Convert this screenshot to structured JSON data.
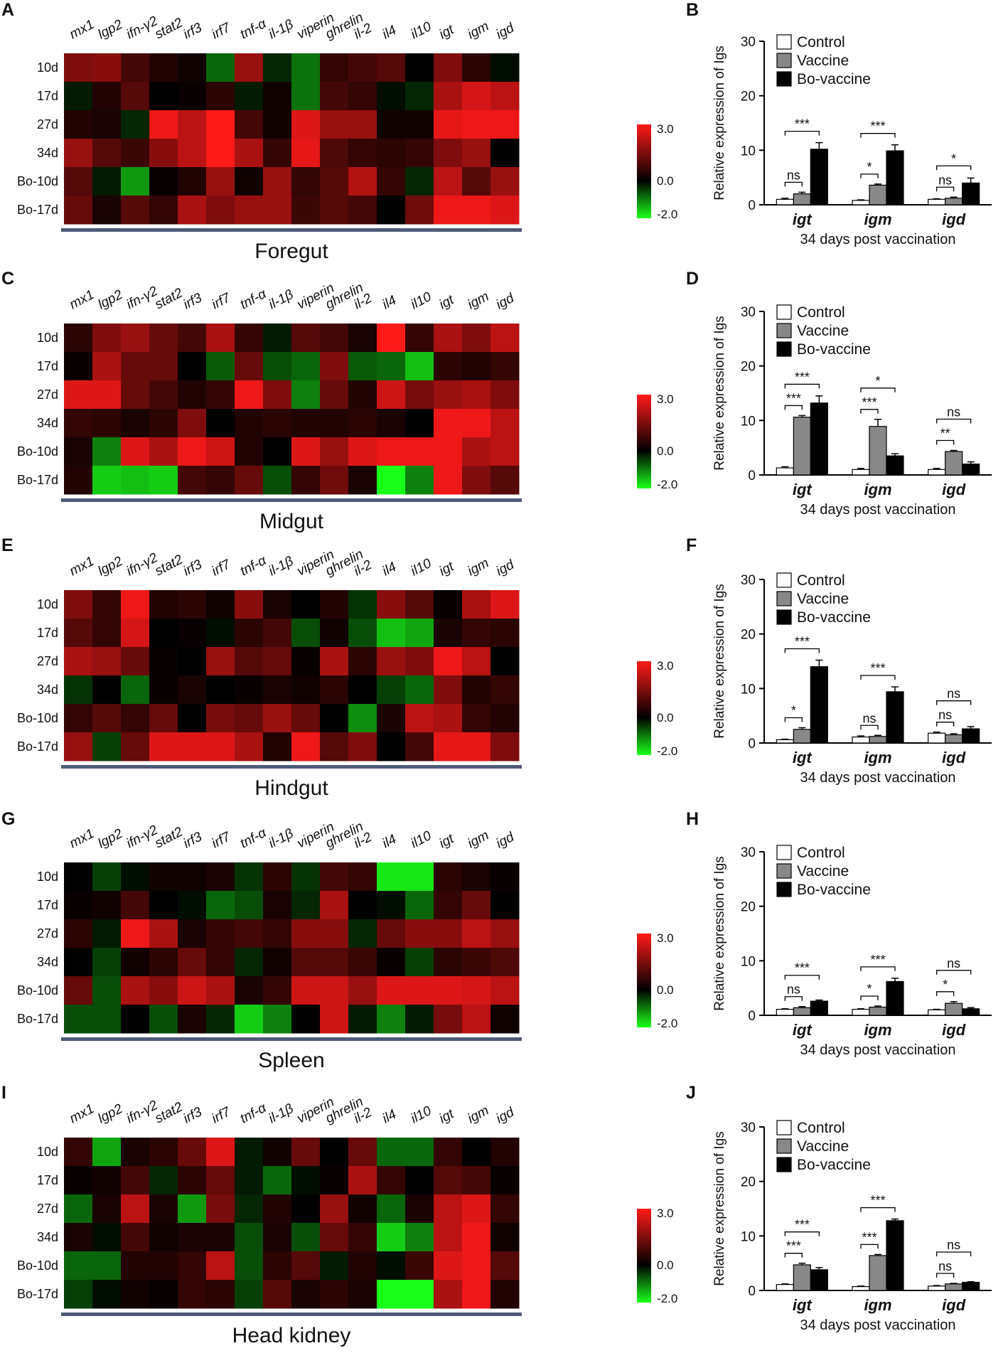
{
  "genes": [
    "mx1",
    "lgp2",
    "ifn-γ2",
    "stat2",
    "irf3",
    "irf7",
    "tnf-α",
    "il-1β",
    "viperin",
    "ghrelin",
    "il-2",
    "il4",
    "il10",
    "igt",
    "igm",
    "igd"
  ],
  "rows": [
    "10d",
    "17d",
    "27d",
    "34d",
    "Bo-10d",
    "Bo-17d"
  ],
  "colorbar": {
    "labels": [
      "3.0",
      "0.0",
      "-2.0"
    ],
    "max": 3.0,
    "mid": 0.0,
    "min": -2.0,
    "high_color": "#ff1a1a",
    "mid_color": "#000000",
    "low_color": "#1aff1a"
  },
  "bar_legend": [
    "Control",
    "Vaccine",
    "Bo-vaccine"
  ],
  "bar_colors": [
    "#ffffff",
    "#888888",
    "#000000"
  ],
  "bar_ylabel": "Relative expression of Igs",
  "bar_xlabel": "34 days post vaccination",
  "bar_categories": [
    "igt",
    "igm",
    "igd"
  ],
  "bar_yticks": [
    "0",
    "10",
    "20",
    "30"
  ],
  "chart_data": [
    {
      "type": "heatmap",
      "panel": "A",
      "title": "Foregut",
      "xlabels_ref": "genes",
      "ylabels_ref": "rows",
      "values": [
        [
          1.5,
          1.6,
          0.8,
          0.4,
          0.2,
          -0.8,
          1.8,
          -0.3,
          -0.9,
          0.6,
          0.8,
          1.0,
          0.0,
          1.5,
          0.5,
          -0.1
        ],
        [
          -0.2,
          0.4,
          1.0,
          0.0,
          0.1,
          0.5,
          -0.2,
          0.2,
          -0.9,
          0.8,
          0.6,
          -0.1,
          -0.3,
          2.0,
          2.5,
          2.2
        ],
        [
          0.4,
          0.3,
          -0.3,
          2.8,
          2.2,
          3.0,
          0.8,
          0.2,
          2.6,
          1.8,
          1.8,
          0.2,
          0.2,
          2.7,
          2.8,
          2.8
        ],
        [
          1.8,
          1.0,
          0.7,
          1.6,
          2.2,
          3.0,
          2.0,
          0.6,
          2.7,
          0.9,
          0.6,
          0.5,
          0.6,
          1.5,
          1.8,
          0.0
        ],
        [
          1.0,
          -0.2,
          -1.2,
          0.1,
          0.4,
          1.8,
          0.2,
          1.8,
          0.6,
          1.0,
          2.1,
          0.6,
          -0.3,
          2.2,
          1.0,
          1.8
        ],
        [
          1.2,
          0.3,
          1.0,
          0.6,
          2.0,
          1.5,
          1.8,
          1.8,
          0.7,
          1.0,
          0.8,
          0.0,
          1.3,
          2.8,
          2.8,
          2.6
        ]
      ]
    },
    {
      "type": "bar",
      "panel": "B",
      "categories_ref": "bar_categories",
      "xlabel": "34 days post vaccination",
      "ylabel": "Relative expression of Igs",
      "ylim": [
        0,
        30
      ],
      "series": [
        {
          "name": "Control",
          "values": [
            1.0,
            0.8,
            1.0
          ],
          "errors": [
            0.2,
            0.1,
            0.1
          ]
        },
        {
          "name": "Vaccine",
          "values": [
            2.0,
            3.6,
            1.2
          ],
          "errors": [
            0.3,
            0.2,
            0.2
          ]
        },
        {
          "name": "Bo-vaccine",
          "values": [
            10.2,
            9.9,
            4.0
          ],
          "errors": [
            1.2,
            1.1,
            0.9
          ]
        }
      ],
      "significance": [
        {
          "cat": 0,
          "pair": [
            0,
            1
          ],
          "label": "ns"
        },
        {
          "cat": 0,
          "pair": [
            0,
            2
          ],
          "label": "***"
        },
        {
          "cat": 1,
          "pair": [
            0,
            1
          ],
          "label": "*"
        },
        {
          "cat": 1,
          "pair": [
            0,
            2
          ],
          "label": "***"
        },
        {
          "cat": 2,
          "pair": [
            0,
            1
          ],
          "label": "ns"
        },
        {
          "cat": 2,
          "pair": [
            0,
            2
          ],
          "label": "*"
        }
      ]
    },
    {
      "type": "heatmap",
      "panel": "C",
      "title": "Midgut",
      "xlabels_ref": "genes",
      "ylabels_ref": "rows",
      "values": [
        [
          0.5,
          1.5,
          1.8,
          1.2,
          0.8,
          2.0,
          0.6,
          -0.2,
          1.0,
          0.8,
          0.3,
          3.0,
          0.6,
          2.0,
          1.5,
          2.2
        ],
        [
          0.1,
          2.0,
          1.2,
          1.2,
          0.0,
          -0.7,
          1.2,
          -0.6,
          -0.8,
          1.5,
          -0.7,
          -0.8,
          -1.5,
          0.5,
          0.4,
          0.6
        ],
        [
          2.6,
          2.6,
          1.2,
          0.8,
          0.4,
          0.6,
          2.8,
          1.5,
          -1.0,
          1.2,
          0.4,
          2.4,
          1.4,
          1.8,
          2.0,
          1.5
        ],
        [
          0.6,
          0.5,
          0.3,
          0.5,
          1.5,
          0.0,
          0.4,
          0.5,
          0.4,
          0.4,
          0.5,
          0.3,
          0.0,
          2.8,
          2.8,
          2.2
        ],
        [
          0.3,
          -1.0,
          2.6,
          2.0,
          2.8,
          2.4,
          0.4,
          0.0,
          2.6,
          1.8,
          2.6,
          2.8,
          2.8,
          2.8,
          2.0,
          2.2
        ],
        [
          0.4,
          -1.6,
          -1.5,
          -1.6,
          0.8,
          0.6,
          1.2,
          -0.6,
          0.6,
          1.3,
          0.3,
          -2.0,
          -1.0,
          2.8,
          1.5,
          1.0
        ]
      ]
    },
    {
      "type": "bar",
      "panel": "D",
      "categories_ref": "bar_categories",
      "xlabel": "34 days post vaccination",
      "ylabel": "Relative expression of Igs",
      "ylim": [
        0,
        30
      ],
      "series": [
        {
          "name": "Control",
          "values": [
            1.3,
            1.0,
            1.0
          ],
          "errors": [
            0.2,
            0.2,
            0.2
          ]
        },
        {
          "name": "Vaccine",
          "values": [
            10.6,
            8.9,
            4.3
          ],
          "errors": [
            0.3,
            1.3,
            0.2
          ]
        },
        {
          "name": "Bo-vaccine",
          "values": [
            13.2,
            3.5,
            2.0
          ],
          "errors": [
            1.3,
            0.4,
            0.4
          ]
        }
      ],
      "significance": [
        {
          "cat": 0,
          "pair": [
            0,
            1
          ],
          "label": "***"
        },
        {
          "cat": 0,
          "pair": [
            0,
            2
          ],
          "label": "***"
        },
        {
          "cat": 1,
          "pair": [
            0,
            1
          ],
          "label": "***"
        },
        {
          "cat": 1,
          "pair": [
            0,
            2
          ],
          "label": "*"
        },
        {
          "cat": 2,
          "pair": [
            0,
            1
          ],
          "label": "**"
        },
        {
          "cat": 2,
          "pair": [
            0,
            2
          ],
          "label": "ns"
        }
      ]
    },
    {
      "type": "heatmap",
      "panel": "E",
      "title": "Hindgut",
      "xlabels_ref": "genes",
      "ylabels_ref": "rows",
      "values": [
        [
          1.5,
          0.6,
          2.8,
          0.4,
          0.5,
          0.2,
          1.6,
          0.3,
          0.0,
          0.4,
          -0.4,
          1.6,
          1.0,
          0.1,
          2.0,
          2.6
        ],
        [
          1.0,
          0.6,
          2.5,
          0.0,
          0.1,
          -0.1,
          0.5,
          0.8,
          -0.6,
          0.2,
          -0.6,
          -1.5,
          -1.3,
          0.3,
          0.6,
          0.5
        ],
        [
          2.0,
          1.8,
          1.2,
          0.1,
          0.0,
          1.8,
          1.0,
          1.2,
          0.1,
          2.0,
          0.5,
          1.8,
          1.5,
          2.8,
          2.2,
          0.0
        ],
        [
          -0.4,
          0.0,
          -0.8,
          0.1,
          0.3,
          0.0,
          0.1,
          0.3,
          0.2,
          0.5,
          0.0,
          -0.5,
          -0.8,
          1.5,
          0.4,
          0.6
        ],
        [
          0.6,
          1.0,
          0.6,
          1.2,
          0.0,
          1.4,
          1.2,
          1.8,
          1.2,
          0.0,
          -1.1,
          0.3,
          2.2,
          2.0,
          0.6,
          0.4
        ],
        [
          1.8,
          -0.5,
          1.2,
          2.6,
          2.6,
          2.6,
          2.0,
          0.4,
          2.8,
          1.0,
          1.5,
          0.0,
          0.8,
          2.7,
          2.7,
          1.5
        ]
      ]
    },
    {
      "type": "bar",
      "panel": "F",
      "categories_ref": "bar_categories",
      "xlabel": "34 days post vaccination",
      "ylabel": "Relative expression of Igs",
      "ylim": [
        0,
        30
      ],
      "series": [
        {
          "name": "Control",
          "values": [
            0.6,
            1.1,
            1.8
          ],
          "errors": [
            0.1,
            0.2,
            0.2
          ]
        },
        {
          "name": "Vaccine",
          "values": [
            2.5,
            1.2,
            1.5
          ],
          "errors": [
            0.3,
            0.2,
            0.2
          ]
        },
        {
          "name": "Bo-vaccine",
          "values": [
            14.0,
            9.4,
            2.6
          ],
          "errors": [
            1.2,
            0.9,
            0.4
          ]
        }
      ],
      "significance": [
        {
          "cat": 0,
          "pair": [
            0,
            1
          ],
          "label": "*"
        },
        {
          "cat": 0,
          "pair": [
            0,
            2
          ],
          "label": "***"
        },
        {
          "cat": 1,
          "pair": [
            0,
            1
          ],
          "label": "ns"
        },
        {
          "cat": 1,
          "pair": [
            0,
            2
          ],
          "label": "***"
        },
        {
          "cat": 2,
          "pair": [
            0,
            1
          ],
          "label": "ns"
        },
        {
          "cat": 2,
          "pair": [
            0,
            2
          ],
          "label": "ns"
        }
      ]
    },
    {
      "type": "heatmap",
      "panel": "G",
      "title": "Spleen",
      "xlabels_ref": "genes",
      "ylabels_ref": "rows",
      "values": [
        [
          0.0,
          -0.5,
          -0.1,
          0.2,
          0.2,
          0.3,
          -0.4,
          0.5,
          -0.4,
          0.8,
          0.6,
          -1.8,
          -1.8,
          0.5,
          0.3,
          0.1
        ],
        [
          0.1,
          0.2,
          0.8,
          0.0,
          -0.1,
          -0.8,
          -0.6,
          0.3,
          -0.3,
          2.0,
          0.0,
          -0.1,
          -0.8,
          0.6,
          1.2,
          0.0
        ],
        [
          0.5,
          -0.2,
          2.8,
          2.0,
          0.3,
          0.6,
          0.8,
          0.6,
          1.6,
          1.6,
          -0.3,
          1.2,
          1.6,
          1.6,
          2.2,
          1.8
        ],
        [
          0.0,
          -0.5,
          0.2,
          0.5,
          1.2,
          0.6,
          -0.3,
          0.2,
          1.0,
          1.0,
          0.7,
          0.1,
          -0.5,
          0.5,
          0.7,
          0.9
        ],
        [
          1.2,
          -0.6,
          2.0,
          1.6,
          2.4,
          2.0,
          0.3,
          0.6,
          2.4,
          2.4,
          1.8,
          2.6,
          2.6,
          2.6,
          2.5,
          2.2
        ],
        [
          -0.6,
          -0.6,
          0.0,
          -0.6,
          0.3,
          -0.3,
          -1.6,
          -1.0,
          0.0,
          2.4,
          -0.2,
          -1.0,
          -0.2,
          1.4,
          2.2,
          0.2
        ]
      ]
    },
    {
      "type": "bar",
      "panel": "H",
      "categories_ref": "bar_categories",
      "xlabel": "34 days post vaccination",
      "ylabel": "Relative expression of Igs",
      "ylim": [
        0,
        30
      ],
      "series": [
        {
          "name": "Control",
          "values": [
            1.1,
            1.1,
            1.0
          ],
          "errors": [
            0.1,
            0.1,
            0.1
          ]
        },
        {
          "name": "Vaccine",
          "values": [
            1.4,
            1.5,
            2.2
          ],
          "errors": [
            0.2,
            0.2,
            0.3
          ]
        },
        {
          "name": "Bo-vaccine",
          "values": [
            2.6,
            6.2,
            1.2
          ],
          "errors": [
            0.2,
            0.6,
            0.2
          ]
        }
      ],
      "significance": [
        {
          "cat": 0,
          "pair": [
            0,
            1
          ],
          "label": "ns"
        },
        {
          "cat": 0,
          "pair": [
            0,
            2
          ],
          "label": "***"
        },
        {
          "cat": 1,
          "pair": [
            0,
            1
          ],
          "label": "*"
        },
        {
          "cat": 1,
          "pair": [
            0,
            2
          ],
          "label": "***"
        },
        {
          "cat": 2,
          "pair": [
            0,
            1
          ],
          "label": "*"
        },
        {
          "cat": 2,
          "pair": [
            0,
            2
          ],
          "label": "ns"
        }
      ]
    },
    {
      "type": "heatmap",
      "panel": "I",
      "title": "Head kidney",
      "xlabels_ref": "genes",
      "ylabels_ref": "rows",
      "values": [
        [
          0.6,
          -1.3,
          0.3,
          0.5,
          1.2,
          2.6,
          -0.2,
          0.2,
          1.2,
          0.0,
          1.2,
          -0.8,
          -0.8,
          0.6,
          0.0,
          0.4
        ],
        [
          0.1,
          0.2,
          0.8,
          -0.3,
          0.5,
          1.2,
          -0.2,
          -0.8,
          -0.1,
          0.1,
          2.0,
          0.6,
          0.0,
          1.0,
          0.8,
          0.1
        ],
        [
          -0.8,
          0.3,
          2.2,
          0.3,
          -1.2,
          1.4,
          -0.3,
          0.4,
          0.0,
          1.8,
          0.2,
          -0.8,
          0.3,
          2.2,
          2.6,
          0.6
        ],
        [
          0.3,
          -0.1,
          0.8,
          0.2,
          0.3,
          0.3,
          -0.6,
          0.3,
          -0.6,
          1.2,
          0.6,
          -1.6,
          -1.0,
          2.2,
          2.8,
          0.2
        ],
        [
          -0.8,
          -0.8,
          0.4,
          0.4,
          0.6,
          2.2,
          -0.6,
          0.5,
          1.0,
          -0.2,
          0.4,
          -0.1,
          0.7,
          2.6,
          2.8,
          1.0
        ],
        [
          -0.5,
          -0.1,
          0.2,
          0.1,
          0.6,
          0.5,
          -0.5,
          1.0,
          0.3,
          0.5,
          0.3,
          -2.0,
          -2.0,
          2.0,
          2.8,
          0.4
        ]
      ]
    },
    {
      "type": "bar",
      "panel": "J",
      "categories_ref": "bar_categories",
      "xlabel": "34 days post vaccination",
      "ylabel": "Relative expression of Igs",
      "ylim": [
        0,
        30
      ],
      "series": [
        {
          "name": "Control",
          "values": [
            1.1,
            0.7,
            0.8
          ],
          "errors": [
            0.1,
            0.1,
            0.1
          ]
        },
        {
          "name": "Vaccine",
          "values": [
            4.7,
            6.4,
            1.2
          ],
          "errors": [
            0.3,
            0.2,
            0.1
          ]
        },
        {
          "name": "Bo-vaccine",
          "values": [
            3.8,
            12.8,
            1.5
          ],
          "errors": [
            0.4,
            0.3,
            0.1
          ]
        }
      ],
      "significance": [
        {
          "cat": 0,
          "pair": [
            0,
            1
          ],
          "label": "***"
        },
        {
          "cat": 0,
          "pair": [
            0,
            2
          ],
          "label": "***"
        },
        {
          "cat": 1,
          "pair": [
            0,
            1
          ],
          "label": "***"
        },
        {
          "cat": 1,
          "pair": [
            0,
            2
          ],
          "label": "***"
        },
        {
          "cat": 2,
          "pair": [
            0,
            1
          ],
          "label": "ns"
        },
        {
          "cat": 2,
          "pair": [
            0,
            2
          ],
          "label": "ns"
        }
      ]
    }
  ]
}
